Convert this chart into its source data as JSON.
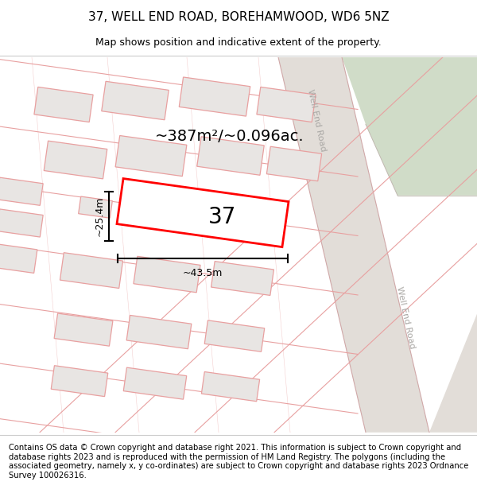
{
  "title": "37, WELL END ROAD, BOREHAMWOOD, WD6 5NZ",
  "subtitle": "Map shows position and indicative extent of the property.",
  "footer": "Contains OS data © Crown copyright and database right 2021. This information is subject to Crown copyright and database rights 2023 and is reproduced with the permission of HM Land Registry. The polygons (including the associated geometry, namely x, y co-ordinates) are subject to Crown copyright and database rights 2023 Ordnance Survey 100026316.",
  "area_text": "~387m²/~0.096ac.",
  "number_label": "37",
  "dim_width": "~43.5m",
  "dim_height": "~25.4m",
  "map_bg": "#f7f4f2",
  "road_fill": "#e8e4e0",
  "road_label_color": "#aaa8a5",
  "highlight_color": "#ff0000",
  "block_fill": "#e8e5e3",
  "block_stroke": "#e8a0a0",
  "green_fill": "#d0dcc8",
  "title_fontsize": 11,
  "subtitle_fontsize": 9,
  "footer_fontsize": 7.2,
  "area_fontsize": 14,
  "num_fontsize": 20,
  "dim_fontsize": 9
}
